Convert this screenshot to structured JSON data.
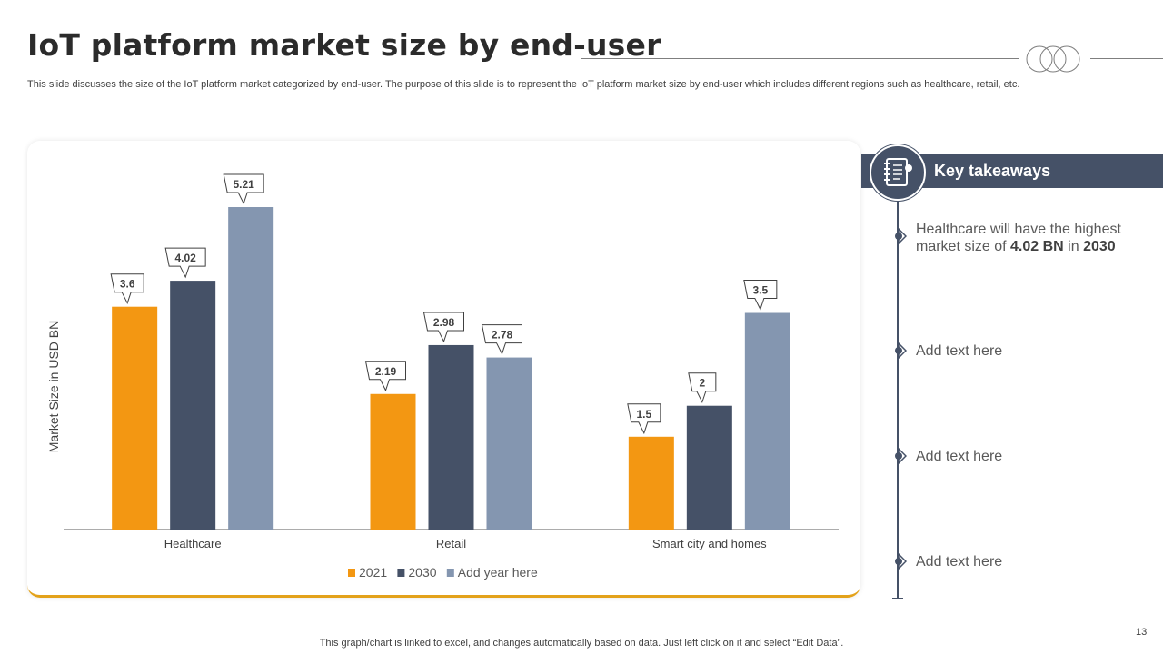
{
  "slide": {
    "title": "IoT platform market size by end-user",
    "subtitle": "This slide discusses the size of the IoT platform market categorized by end-user. The purpose of this slide is to represent the IoT platform market size by end-user which includes different regions such as healthcare, retail, etc.",
    "footer": "This graph/chart is linked to excel, and changes automatically based on data. Just left click on it and select “Edit Data”.",
    "page_number": "13"
  },
  "takeaways": {
    "heading": "Key takeaways",
    "icon": "notebook-icon",
    "items": [
      {
        "pre": "Healthcare will have the highest market size of ",
        "b1": "4.02 BN",
        "mid": " in ",
        "b2": "2030"
      },
      {
        "text": "Add text here"
      },
      {
        "text": "Add text here"
      },
      {
        "text": "Add text here"
      }
    ]
  },
  "colors": {
    "series_2021": "#f39712",
    "series_2030": "#455167",
    "series_add": "#8496b0",
    "accent_border": "#e3a21a"
  },
  "chart_data": {
    "type": "bar",
    "categories": [
      "Healthcare",
      "Retail",
      "Smart city and homes"
    ],
    "series": [
      {
        "name": "2021",
        "values": [
          3.6,
          2.19,
          1.5
        ]
      },
      {
        "name": "2030",
        "values": [
          4.02,
          2.98,
          2
        ]
      },
      {
        "name": "Add year here",
        "values": [
          5.21,
          2.78,
          3.5
        ]
      }
    ],
    "data_labels": [
      [
        "3.6",
        "2.19",
        "1.5"
      ],
      [
        "4.02",
        "2.98",
        "2"
      ],
      [
        "5.21",
        "2.78",
        "3.5"
      ]
    ],
    "ylabel": "Market Size in USD BN",
    "xlabel": "",
    "ylim": [
      0,
      5.21
    ],
    "legend_position": "bottom",
    "grid": false
  }
}
